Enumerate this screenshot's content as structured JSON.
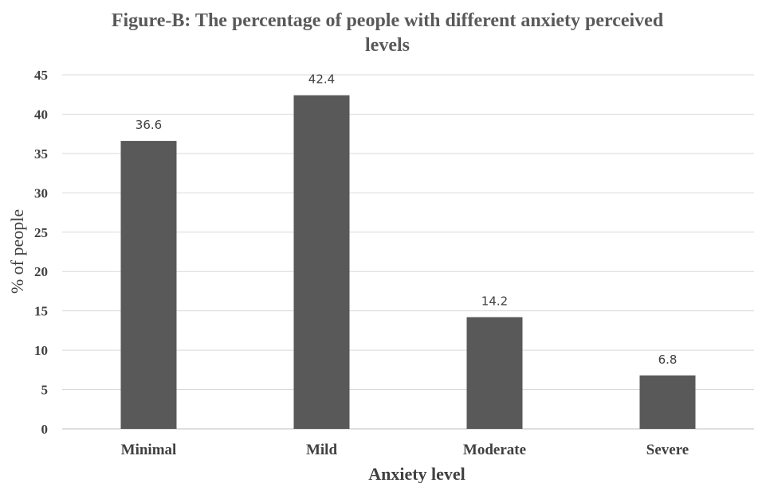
{
  "chart_data": {
    "type": "bar",
    "title_line1": "Figure-B: The percentage of people with different anxiety perceived",
    "title_line2": "levels",
    "xlabel": "Anxiety level",
    "ylabel": "% of people",
    "categories": [
      "Minimal",
      "Mild",
      "Moderate",
      "Severe"
    ],
    "values": [
      36.6,
      42.4,
      14.2,
      6.8
    ],
    "data_labels": [
      "36.6",
      "42.4",
      "14.2",
      "6.8"
    ],
    "ylim": [
      0,
      45
    ],
    "yticks": [
      "0",
      "5",
      "10",
      "15",
      "20",
      "25",
      "30",
      "35",
      "40",
      "45"
    ],
    "ytick_values": [
      0,
      5,
      10,
      15,
      20,
      25,
      30,
      35,
      40,
      45
    ],
    "bar_color": "#595959",
    "grid": true,
    "legend": "none"
  }
}
